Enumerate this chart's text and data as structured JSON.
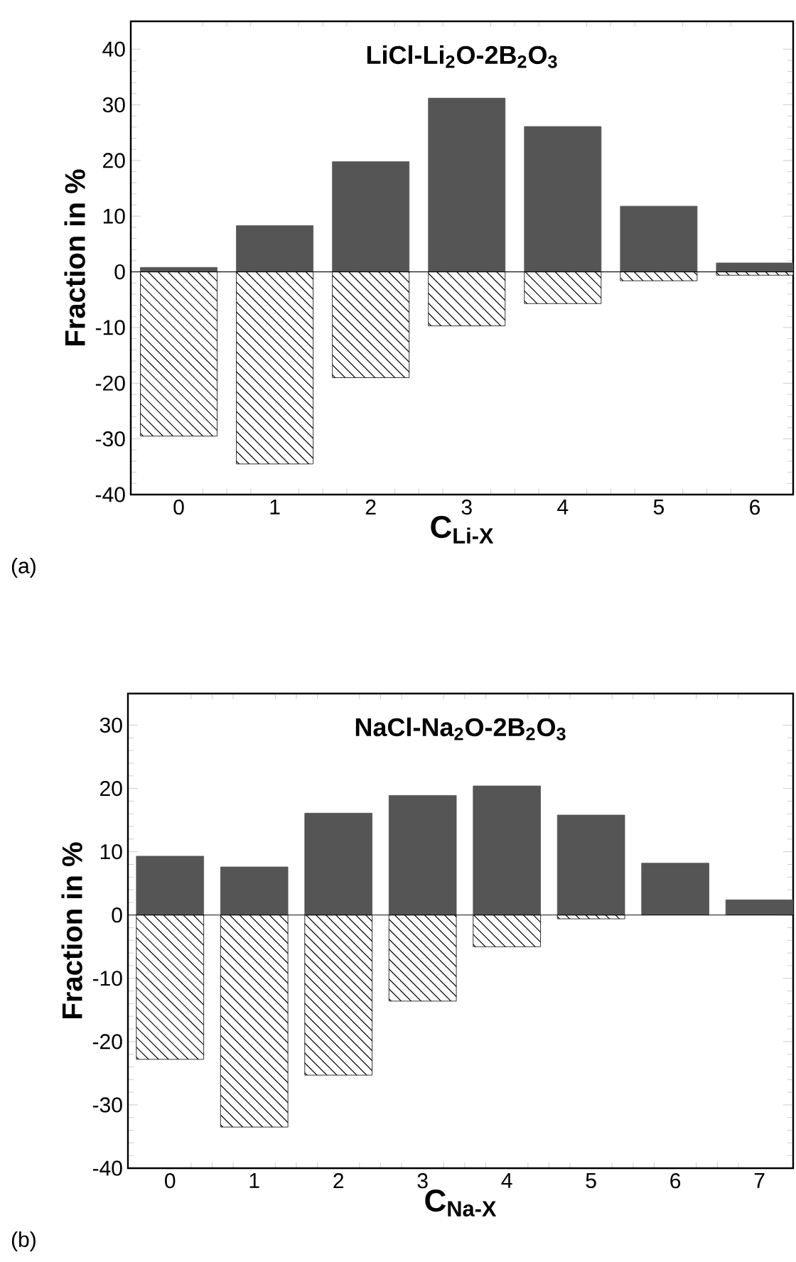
{
  "chart_data": [
    {
      "type": "bar",
      "title": "LiCl-Li$_{2}$O-2B$_{2}$O$_{3}$",
      "xlabel": "C$_{Li-X}$",
      "ylabel": "Fraction in %",
      "categories": [
        "0",
        "1",
        "2",
        "3",
        "4",
        "5",
        "6"
      ],
      "series": [
        {
          "color": "#555555",
          "values": [
            0.8,
            8.3,
            19.8,
            31.2,
            26.1,
            11.8,
            1.6
          ]
        },
        {
          "color": "#000000",
          "values": [
            -29.5,
            -34.5,
            -19.0,
            -9.7,
            -5.7,
            -1.6,
            -0.6
          ]
        }
      ],
      "stacked": true,
      "ylim": [
        -40,
        45
      ],
      "yticks": [
        -40,
        -30,
        -20,
        -10,
        0,
        10,
        20,
        30,
        40
      ],
      "ref_lines": [
        {
          "axis": "y",
          "value": 0
        }
      ],
      "annotations": [
        "(a)"
      ]
    },
    {
      "type": "bar",
      "title": "NaCl-Na$_{2}$O-2B$_{2}$O$_{3}$",
      "xlabel": "C$_{Na-X}$",
      "ylabel": "Fraction in %",
      "categories": [
        "0",
        "1",
        "2",
        "3",
        "4",
        "5",
        "6",
        "7"
      ],
      "series": [
        {
          "color": "#555555",
          "values": [
            9.3,
            7.6,
            16.1,
            18.9,
            20.4,
            15.8,
            8.2,
            2.4
          ]
        },
        {
          "color": "#000000",
          "values": [
            -22.8,
            -33.5,
            -25.3,
            -13.6,
            -5.0,
            -0.6,
            null,
            null
          ]
        }
      ],
      "stacked": true,
      "ylim": [
        -40,
        35
      ],
      "yticks": [
        -40,
        -30,
        -20,
        -10,
        0,
        10,
        20,
        30
      ],
      "ref_lines": [
        {
          "axis": "y",
          "value": 0
        }
      ],
      "annotations": [
        "(b)"
      ]
    }
  ]
}
